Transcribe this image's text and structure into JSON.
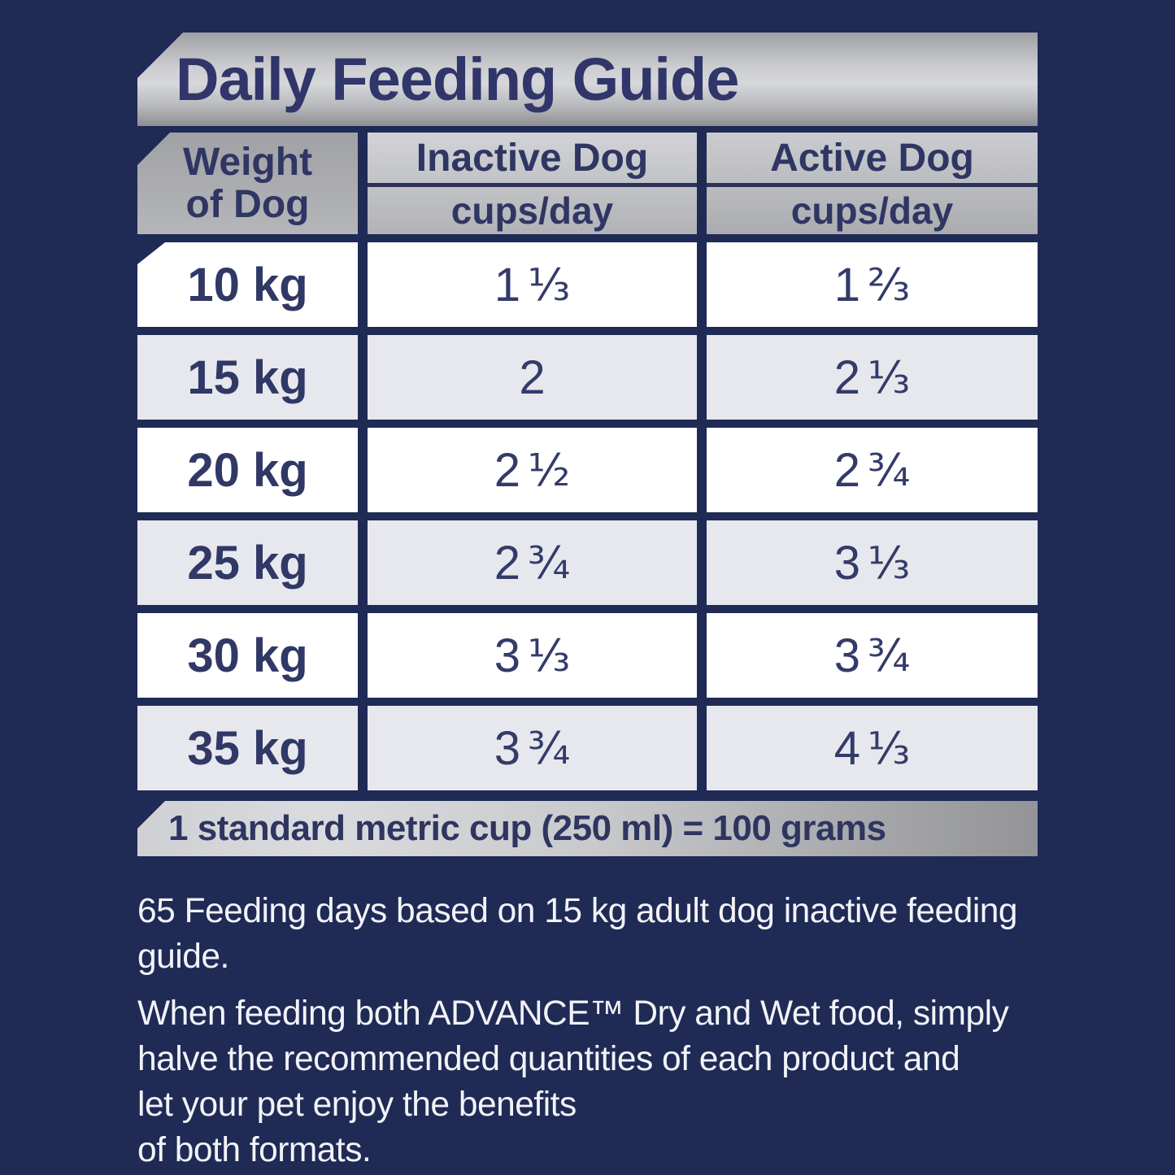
{
  "title": "Daily Feeding Guide",
  "table": {
    "weight_header": {
      "line1": "Weight",
      "line2": "of Dog"
    },
    "columns": [
      {
        "label": "Inactive Dog",
        "unit": "cups/day"
      },
      {
        "label": "Active Dog",
        "unit": "cups/day"
      }
    ],
    "rows": [
      {
        "weight": "10 kg",
        "inactive": {
          "whole": "1",
          "frac": "⅓"
        },
        "active": {
          "whole": "1",
          "frac": "⅔"
        }
      },
      {
        "weight": "15 kg",
        "inactive": {
          "whole": "2",
          "frac": ""
        },
        "active": {
          "whole": "2",
          "frac": "⅓"
        }
      },
      {
        "weight": "20 kg",
        "inactive": {
          "whole": "2",
          "frac": "½"
        },
        "active": {
          "whole": "2",
          "frac": "¾"
        }
      },
      {
        "weight": "25 kg",
        "inactive": {
          "whole": "2",
          "frac": "¾"
        },
        "active": {
          "whole": "3",
          "frac": "⅓"
        }
      },
      {
        "weight": "30 kg",
        "inactive": {
          "whole": "3",
          "frac": "⅓"
        },
        "active": {
          "whole": "3",
          "frac": "¾"
        }
      },
      {
        "weight": "35 kg",
        "inactive": {
          "whole": "3",
          "frac": "¾"
        },
        "active": {
          "whole": "4",
          "frac": "⅓"
        }
      }
    ]
  },
  "cup_note": "1 standard metric cup (250 ml) = 100 grams",
  "notes": [
    {
      "lines": [
        "65 Feeding days based on 15 kg adult dog inactive feeding",
        "guide."
      ]
    },
    {
      "lines": [
        "When feeding both ADVANCE™ Dry and Wet food, simply",
        "halve the recommended quantities of each product and",
        "let your pet enjoy the benefits",
        "of both formats."
      ]
    }
  ],
  "colors": {
    "background_navy": "#1f2a55",
    "text_navy": "#30366a",
    "silver_light": "#d6d7db",
    "silver_dark": "#939498",
    "row_alt_gray": "#e7e8ee",
    "row_white": "#ffffff",
    "footnote_white": "#f2f3f7"
  }
}
